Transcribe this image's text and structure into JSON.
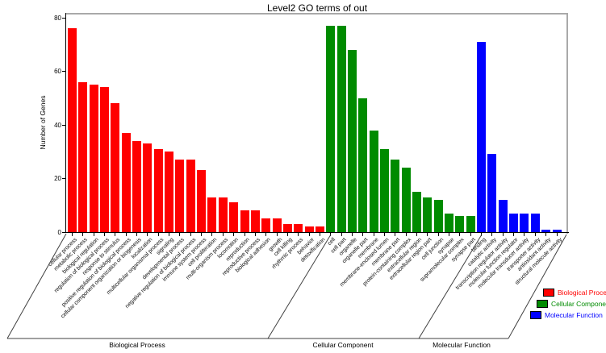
{
  "title": "Level2 GO terms of out",
  "axis": {
    "ylabel": "Number of Genes",
    "yticks": [
      0,
      20,
      40,
      60,
      80
    ],
    "ylim": [
      0,
      80
    ]
  },
  "groups": {
    "labels": [
      "Biological Process",
      "Cellular Component",
      "Molecular Function"
    ]
  },
  "legend": {
    "items": [
      {
        "label": "Biological Process",
        "color": "#ff0000"
      },
      {
        "label": "Cellular Component",
        "color": "#008b00"
      },
      {
        "label": "Molecular Function",
        "color": "#0000ff"
      }
    ]
  },
  "chart_data": {
    "type": "bar",
    "title": "Level2 GO terms of out",
    "ylabel": "Number of Genes",
    "ylim": [
      0,
      80
    ],
    "grid": false,
    "legend_position": "bottom-right",
    "series": [
      {
        "name": "Biological Process",
        "color": "#ff0000",
        "categories": [
          "cellular process",
          "metabolic process",
          "biological regulation",
          "regulation of biological process",
          "response to stimulus",
          "positive regulation of biological process",
          "cellular component organization or biogenesis",
          "localization",
          "multicellular organismal process",
          "signaling",
          "developmental process",
          "negative regulation of biological process",
          "immune system process",
          "cell proliferation",
          "multi-organism process",
          "locomotion",
          "reproduction",
          "reproductive process",
          "biological adhesion",
          "growth",
          "cell killing",
          "rhythmic process",
          "behavior",
          "detoxification"
        ],
        "values": [
          76,
          56,
          55,
          54,
          48,
          37,
          34,
          33,
          31,
          30,
          27,
          27,
          23,
          13,
          13,
          11,
          8,
          8,
          5,
          5,
          3,
          3,
          2,
          2
        ]
      },
      {
        "name": "Cellular Component",
        "color": "#008b00",
        "categories": [
          "cell",
          "cell part",
          "organelle",
          "organelle part",
          "membrane",
          "membrane-enclosed lumen",
          "membrane part",
          "protein-containing complex",
          "extracellular region",
          "extracellular region part",
          "cell junction",
          "synapse",
          "supramolecular complex",
          "synapse part"
        ],
        "values": [
          77,
          77,
          68,
          50,
          38,
          31,
          27,
          24,
          15,
          13,
          12,
          7,
          6,
          6
        ]
      },
      {
        "name": "Molecular Function",
        "color": "#0000ff",
        "categories": [
          "binding",
          "catalytic activity",
          "transcription regulator activity",
          "molecular function regulator",
          "molecular transducer activity",
          "transporter activity",
          "antioxidant activity",
          "structural molecule activity"
        ],
        "values": [
          71,
          29,
          12,
          7,
          7,
          7,
          1,
          1
        ]
      }
    ]
  }
}
